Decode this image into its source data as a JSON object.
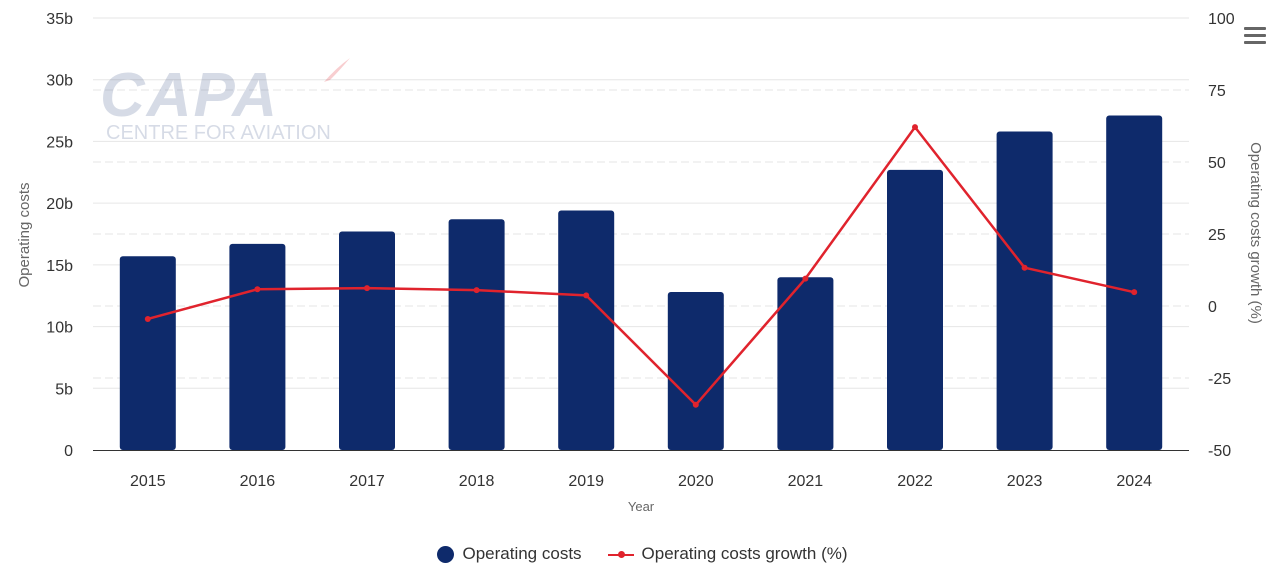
{
  "colors": {
    "bars": "#0e2a6b",
    "line": "#e0232d",
    "grid": "#e6e6e6",
    "axis": "#333333"
  },
  "watermark": {
    "main": "CAPA",
    "sub": "CENTRE FOR AVIATION"
  },
  "menu": {
    "icon": "hamburger-menu-icon"
  },
  "chart_data": {
    "type": "bar",
    "categories": [
      "2015",
      "2016",
      "2017",
      "2018",
      "2019",
      "2020",
      "2021",
      "2022",
      "2023",
      "2024"
    ],
    "series": [
      {
        "name": "Operating costs",
        "type": "bar",
        "axis": "left",
        "values": [
          15700000000,
          16700000000,
          17700000000,
          18700000000,
          19400000000,
          12800000000,
          14000000000,
          22700000000,
          25800000000,
          27100000000
        ]
      },
      {
        "name": "Operating costs growth (%)",
        "type": "line",
        "axis": "right",
        "values": [
          -4.5,
          5.8,
          6.2,
          5.5,
          3.7,
          -34.3,
          9.5,
          62.1,
          13.3,
          4.8
        ]
      }
    ],
    "xlabel": "Year",
    "ylabel": "Operating costs",
    "y2label": "Operating costs growth (%)",
    "ylim": [
      0,
      35000000000
    ],
    "y2lim": [
      -50,
      100
    ],
    "yticks": [
      "0",
      "5b",
      "10b",
      "15b",
      "20b",
      "25b",
      "30b",
      "35b"
    ],
    "y2ticks": [
      "-50",
      "-25",
      "0",
      "25",
      "50",
      "75",
      "100"
    ],
    "grid": true,
    "legend": "bottom-center"
  }
}
